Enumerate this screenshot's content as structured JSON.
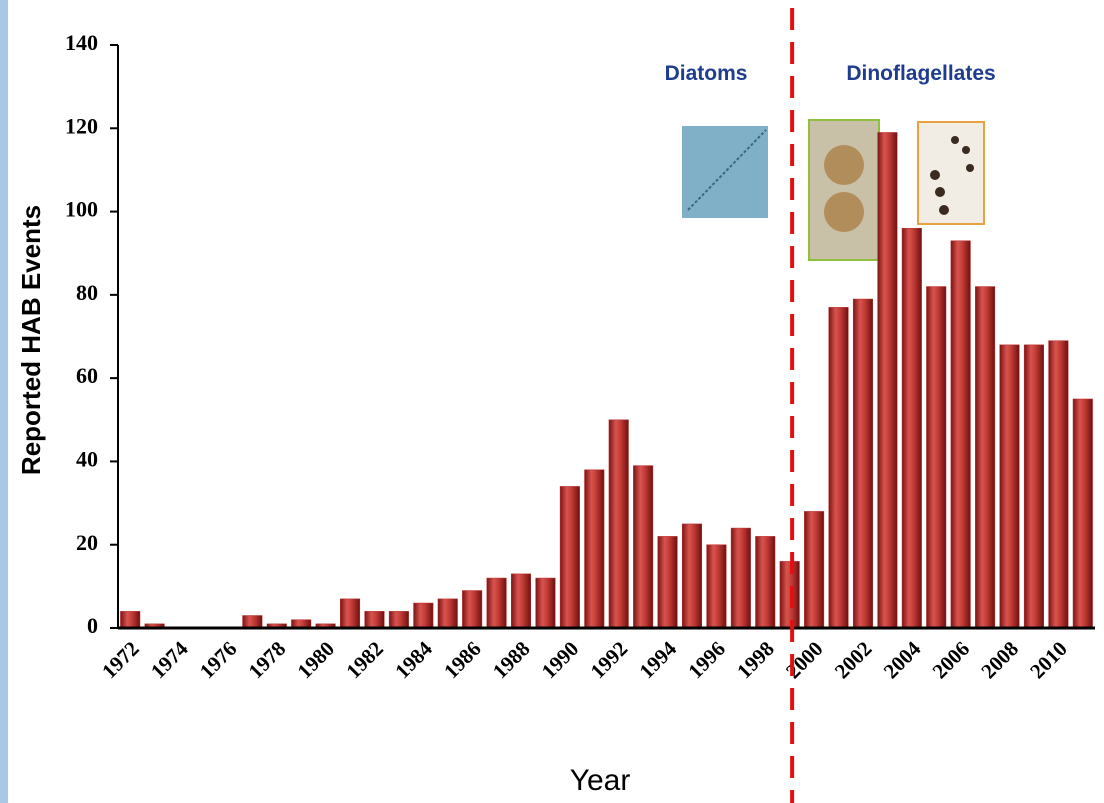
{
  "chart_data": {
    "type": "bar",
    "y_label": "Reported HAB Events",
    "x_label": "Year",
    "annotations": [
      "Diatoms",
      "Dinoflagellates"
    ],
    "categories": [
      "1972",
      null,
      "1974",
      null,
      "1976",
      null,
      "1978",
      null,
      "1980",
      null,
      "1982",
      null,
      "1984",
      null,
      "1986",
      null,
      "1988",
      null,
      "1990",
      null,
      "1992",
      null,
      "1994",
      null,
      "1996",
      null,
      "1998",
      null,
      "2000",
      null,
      "2002",
      null,
      "2004",
      null,
      "2006",
      null,
      "2008",
      null,
      "2010",
      null
    ],
    "values": [
      4,
      1,
      0,
      0,
      0,
      3,
      1,
      2,
      1,
      7,
      4,
      4,
      6,
      7,
      9,
      12,
      13,
      12,
      34,
      38,
      50,
      39,
      22,
      25,
      20,
      24,
      22,
      16,
      28,
      77,
      79,
      119,
      96,
      82,
      93,
      82,
      68,
      68,
      69,
      55
    ],
    "color": "#b8312f",
    "ylim": [
      0,
      140
    ],
    "yticks": [
      0,
      20,
      40,
      60,
      80,
      100,
      120,
      140
    ],
    "grid": false
  }
}
